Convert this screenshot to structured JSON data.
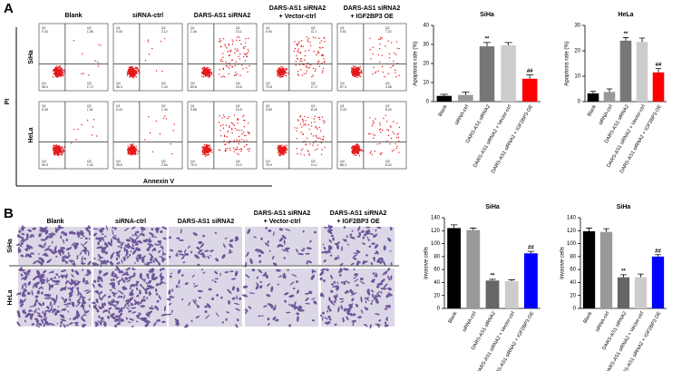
{
  "panel_a": {
    "label": "A",
    "columns": [
      [
        "Blank"
      ],
      [
        "siRNA-ctrl"
      ],
      [
        "DARS-AS1 siRNA2"
      ],
      [
        "DARS-AS1 siRNA2",
        "+ Vector-ctrl"
      ],
      [
        "DARS-AS1 siRNA2",
        "+ IGF2BP3 OE"
      ]
    ],
    "row_labels": [
      "SiHa",
      "HeLa"
    ],
    "y_axis_label": "PI",
    "x_axis_label": "Annexin V",
    "quadrant_names": [
      "Q1",
      "Q2",
      "Q3",
      "Q4"
    ],
    "plots": [
      [
        [
          "0.43",
          "1.85",
          "1.72",
          "96.0"
        ],
        [
          "0.40",
          "2.12",
          "1.43",
          "96.0"
        ],
        [
          "1.46",
          "13.1",
          "15.6",
          "69.8"
        ],
        [
          "0.90",
          "11.1",
          "17.2",
          "70.8"
        ],
        [
          "0.51",
          "7.22",
          "4.98",
          "87.3"
        ]
      ],
      [
        [
          "0.35",
          "1.51",
          "1.62",
          "96.5"
        ],
        [
          "0.43",
          "1.40",
          "2.54",
          "95.6"
        ],
        [
          "0.85",
          "10.5",
          "13.3",
          "75.3"
        ],
        [
          "0.59",
          "8.25",
          "14.2",
          "76.9"
        ],
        [
          "0.33",
          "5.30",
          "6.02",
          "88.3"
        ]
      ]
    ]
  },
  "panel_b": {
    "label": "B",
    "columns": [
      [
        "Blank"
      ],
      [
        "siRNA-ctrl"
      ],
      [
        "DARS-AS1 siRNA2"
      ],
      [
        "DARS-AS1 siRNA2",
        "+ Vector-ctrl"
      ],
      [
        "DARS-AS1 siRNA2",
        "+ IGF2BP3 OE"
      ]
    ],
    "row_labels": [
      "SiHa",
      "HeLa"
    ]
  },
  "chart_data": [
    {
      "type": "bar",
      "title": "SiHa",
      "y_label": "Apoptosis rate (%)",
      "categories": [
        "Blank",
        "siRNA-ctrl",
        "DARS-AS1 siRNA2",
        "DARS-AS1 siRNA2 + Vector-ctrl",
        "DARS-AS1 siRNA2 + IGF2BP3 OE"
      ],
      "values": [
        3,
        3.5,
        29,
        29.5,
        12
      ],
      "errors": [
        0.8,
        1.5,
        2,
        1.5,
        2
      ],
      "colors": [
        "#000000",
        "#999999",
        "#777777",
        "#cccccc",
        "#ff0000"
      ],
      "value_annotations": [
        null,
        null,
        "**",
        null,
        "##"
      ],
      "ylim": [
        0,
        40
      ],
      "yticks": [
        0,
        10,
        20,
        30,
        40
      ]
    },
    {
      "type": "bar",
      "title": "HeLa",
      "y_label": "Apoptosis rate (%)",
      "categories": [
        "Blank",
        "siRNA-ctrl",
        "DARS-AS1 siRNA2",
        "DARS-AS1 siRNA2 + Vector-ctrl",
        "DARS-AS1 siRNA2 + IGF2BP3 OE"
      ],
      "values": [
        3.2,
        3.8,
        24,
        23.5,
        11.5
      ],
      "errors": [
        0.8,
        1.2,
        1.2,
        1.5,
        1.5
      ],
      "colors": [
        "#000000",
        "#999999",
        "#777777",
        "#cccccc",
        "#ff0000"
      ],
      "value_annotations": [
        null,
        null,
        "**",
        null,
        "##"
      ],
      "ylim": [
        0,
        30
      ],
      "yticks": [
        0,
        10,
        20,
        30
      ]
    },
    {
      "type": "bar",
      "title": "SiHa",
      "y_label": "Invasive cells",
      "categories": [
        "Blank",
        "siRNA-ctrl",
        "DARS-AS1 siRNA2",
        "DARS-AS1 siRNA2 + Vector-ctrl",
        "DARS-AS1 siRNA2 + IGF2BP3 OE"
      ],
      "values": [
        124,
        121,
        43,
        42,
        85
      ],
      "errors": [
        5,
        3,
        2,
        2,
        3
      ],
      "colors": [
        "#000000",
        "#999999",
        "#666666",
        "#cccccc",
        "#0000ff"
      ],
      "value_annotations": [
        null,
        null,
        "**",
        null,
        "##"
      ],
      "ylim": [
        0,
        140
      ],
      "yticks": [
        0,
        20,
        40,
        60,
        80,
        100,
        120,
        140
      ]
    },
    {
      "type": "bar",
      "title": "SiHa",
      "y_label": "Invasive cells",
      "categories": [
        "Blank",
        "siRNA-ctrl",
        "DARS-AS1 siRNA2",
        "DARS-AS1 siRNA2 + Vector-ctrl",
        "DARS-AS1 siRNA2 + IGF2BP3 OE"
      ],
      "values": [
        119,
        118,
        48,
        48,
        80
      ],
      "errors": [
        5,
        5,
        4,
        5,
        3
      ],
      "colors": [
        "#000000",
        "#999999",
        "#666666",
        "#cccccc",
        "#0000ff"
      ],
      "value_annotations": [
        null,
        null,
        "**",
        null,
        "##"
      ],
      "ylim": [
        0,
        140
      ],
      "yticks": [
        0,
        20,
        40,
        60,
        80,
        100,
        120,
        140
      ]
    }
  ]
}
